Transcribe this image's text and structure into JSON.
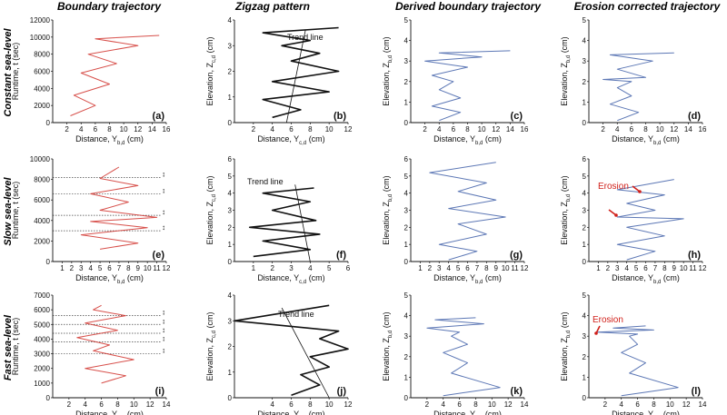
{
  "colors": {
    "red": "#d0302a",
    "blue": "#3f5fa8",
    "black": "#111111",
    "annot": "#d0201a"
  },
  "column_titles": [
    "Boundary trajectory",
    "Zigzag pattern",
    "Derived boundary trajectory",
    "Erosion corrected trajectory"
  ],
  "row_titles": [
    "Constant sea-level",
    "Slow sea-level",
    "Fast sea-level"
  ],
  "chart_data": [
    {
      "id": "a",
      "type": "line",
      "row": 0,
      "col": 0,
      "color": "red",
      "panel_label": "(a)",
      "xlabel": "Distance, Y_{b,d} (cm)",
      "ylabel1": "Runtime, t (sec)",
      "ylabel2": "",
      "xlim": [
        0,
        16
      ],
      "ylim": [
        0,
        12000
      ],
      "xticks": [
        2,
        4,
        6,
        8,
        10,
        12,
        14,
        16
      ],
      "yticks": [
        0,
        2000,
        4000,
        6000,
        8000,
        10000,
        12000
      ],
      "series": [
        {
          "name": "boundary",
          "x": [
            2.5,
            6,
            3,
            8,
            4,
            9,
            5,
            12,
            6,
            15
          ],
          "y": [
            800,
            2000,
            3200,
            4500,
            5800,
            6900,
            8000,
            9000,
            9800,
            10200
          ]
        }
      ]
    },
    {
      "id": "b",
      "type": "line",
      "row": 0,
      "col": 1,
      "color": "black",
      "panel_label": "(b)",
      "xlabel": "Distance, Y_{c,d} (cm)",
      "ylabel1": "Elevation, Z_{c,d} (cm)",
      "ylabel2": "",
      "xlim": [
        0,
        12
      ],
      "ylim": [
        0,
        4
      ],
      "xticks": [
        2,
        4,
        6,
        8,
        10,
        12
      ],
      "yticks": [
        0,
        1,
        2,
        3,
        4
      ],
      "series": [
        {
          "name": "zigzag",
          "x": [
            4,
            7,
            3,
            10,
            4,
            11,
            6,
            9,
            5,
            8,
            3,
            11
          ],
          "y": [
            0.2,
            0.5,
            0.9,
            1.2,
            1.6,
            2.0,
            2.4,
            2.7,
            3.0,
            3.2,
            3.5,
            3.7
          ]
        },
        {
          "name": "trend",
          "x": [
            5.5,
            7.5
          ],
          "y": [
            0,
            3.6
          ]
        }
      ],
      "annotation": "Trend line"
    },
    {
      "id": "c",
      "type": "line",
      "row": 0,
      "col": 2,
      "color": "blue",
      "panel_label": "(c)",
      "xlabel": "Distance, Y_{b,d} (cm)",
      "ylabel1": "Elevation, Z_{b,d} (cm)",
      "ylabel2": "",
      "xlim": [
        0,
        16
      ],
      "ylim": [
        0,
        5
      ],
      "xticks": [
        2,
        4,
        6,
        8,
        10,
        12,
        14,
        16
      ],
      "yticks": [
        0,
        1,
        2,
        3,
        4,
        5
      ],
      "series": [
        {
          "name": "derived",
          "x": [
            4,
            7,
            3,
            7,
            4,
            6,
            3,
            8,
            2,
            10,
            4,
            14
          ],
          "y": [
            0.1,
            0.5,
            0.8,
            1.2,
            1.6,
            2.0,
            2.3,
            2.7,
            3.0,
            3.2,
            3.4,
            3.5
          ]
        }
      ]
    },
    {
      "id": "d",
      "type": "line",
      "row": 0,
      "col": 3,
      "color": "blue",
      "panel_label": "(d)",
      "xlabel": "Distance, Y_{b,d} (cm)",
      "ylabel1": "Elevation, Z_{b,d} (cm)",
      "ylabel2": "",
      "xlim": [
        0,
        16
      ],
      "ylim": [
        0,
        5
      ],
      "xticks": [
        2,
        4,
        6,
        8,
        10,
        12,
        14,
        16
      ],
      "yticks": [
        0,
        1,
        2,
        3,
        4,
        5
      ],
      "series": [
        {
          "name": "corrected",
          "x": [
            4,
            7,
            3,
            6,
            4,
            6,
            2,
            8,
            4,
            9,
            3,
            12
          ],
          "y": [
            0.1,
            0.5,
            0.9,
            1.3,
            1.7,
            2.0,
            2.1,
            2.2,
            2.6,
            3.0,
            3.3,
            3.4
          ]
        }
      ]
    },
    {
      "id": "e",
      "type": "line",
      "row": 1,
      "col": 0,
      "color": "red",
      "panel_label": "(e)",
      "xlabel": "Distance, Y_{b,d} (cm)",
      "ylabel1": "Runtime, t (sec)",
      "ylabel2": "",
      "xlim": [
        0,
        12
      ],
      "ylim": [
        0,
        10000
      ],
      "xticks": [
        1,
        2,
        3,
        4,
        5,
        6,
        7,
        8,
        9,
        10,
        11,
        12
      ],
      "yticks": [
        0,
        2000,
        4000,
        6000,
        8000,
        10000
      ],
      "series": [
        {
          "name": "boundary",
          "x": [
            5,
            9,
            3,
            10,
            4,
            11,
            5,
            8,
            4,
            9,
            5,
            7
          ],
          "y": [
            1200,
            1800,
            2600,
            3300,
            3900,
            4300,
            5000,
            5800,
            6600,
            7400,
            8100,
            9200
          ]
        }
      ],
      "hlines": [
        3000,
        4500,
        6600,
        8200
      ]
    },
    {
      "id": "f",
      "type": "line",
      "row": 1,
      "col": 1,
      "color": "black",
      "panel_label": "(f)",
      "xlabel": "Distance, Y_{c,d} (cm)",
      "ylabel1": "Elevation, Z_{c,d} (cm)",
      "ylabel2": "",
      "xlim": [
        0,
        6
      ],
      "ylim": [
        0,
        6
      ],
      "xticks": [
        1,
        2,
        3,
        4,
        5,
        6
      ],
      "yticks": [
        0,
        1,
        2,
        3,
        4,
        5,
        6
      ],
      "series": [
        {
          "name": "zigzag",
          "x": [
            1,
            4,
            1.5,
            4.5,
            0.8,
            4.3,
            2,
            4,
            1.5,
            4.2
          ],
          "y": [
            0.3,
            0.7,
            1.2,
            1.6,
            2.0,
            2.4,
            3.0,
            3.5,
            4.0,
            4.3
          ]
        },
        {
          "name": "trend",
          "x": [
            4,
            3.2
          ],
          "y": [
            0,
            4.5
          ]
        }
      ],
      "annotation": "Trend line"
    },
    {
      "id": "g",
      "type": "line",
      "row": 1,
      "col": 2,
      "color": "blue",
      "panel_label": "(g)",
      "xlabel": "Distance, Y_{b,d} (cm)",
      "ylabel1": "Elevation, Z_{b,d} (cm)",
      "ylabel2": "",
      "xlim": [
        0,
        12
      ],
      "ylim": [
        0,
        6
      ],
      "xticks": [
        1,
        2,
        3,
        4,
        5,
        6,
        7,
        8,
        9,
        10,
        11,
        12
      ],
      "yticks": [
        0,
        1,
        2,
        3,
        4,
        5,
        6
      ],
      "series": [
        {
          "name": "derived",
          "x": [
            4,
            7,
            3,
            8,
            5,
            10,
            4,
            9,
            5,
            8,
            2,
            9
          ],
          "y": [
            0.1,
            0.6,
            1.0,
            1.6,
            2.2,
            2.6,
            3.1,
            3.6,
            4.1,
            4.6,
            5.2,
            5.8
          ]
        }
      ]
    },
    {
      "id": "h",
      "type": "line",
      "row": 1,
      "col": 3,
      "color": "blue",
      "panel_label": "(h)",
      "xlabel": "Distance, Y_{b,d} (cm)",
      "ylabel1": "Elevation, Z_{b,d} (cm)",
      "ylabel2": "",
      "xlim": [
        0,
        12
      ],
      "ylim": [
        0,
        6
      ],
      "xticks": [
        1,
        2,
        3,
        4,
        5,
        6,
        7,
        8,
        9,
        10,
        11,
        12
      ],
      "yticks": [
        0,
        1,
        2,
        3,
        4,
        5,
        6
      ],
      "series": [
        {
          "name": "corrected",
          "x": [
            4,
            7,
            3,
            8,
            4,
            10,
            3,
            7,
            4,
            8,
            3,
            9
          ],
          "y": [
            0.1,
            0.6,
            1.0,
            1.5,
            2.0,
            2.5,
            2.6,
            3.0,
            3.4,
            3.9,
            4.2,
            4.8
          ]
        }
      ],
      "annotation": "Erosion"
    },
    {
      "id": "i",
      "type": "line",
      "row": 2,
      "col": 0,
      "color": "red",
      "panel_label": "(i)",
      "xlabel": "Distance, Y_{b,d} (cm)",
      "ylabel1": "Runtime, t (sec)",
      "ylabel2": "",
      "xlim": [
        0,
        14
      ],
      "ylim": [
        0,
        7000
      ],
      "xticks": [
        2,
        4,
        6,
        8,
        10,
        12,
        14
      ],
      "yticks": [
        0,
        1000,
        2000,
        3000,
        4000,
        5000,
        6000,
        7000
      ],
      "series": [
        {
          "name": "boundary",
          "x": [
            6,
            9,
            4,
            10,
            5,
            7,
            3,
            8,
            4,
            9,
            5,
            6
          ],
          "y": [
            1000,
            1500,
            2000,
            2600,
            3200,
            3600,
            4100,
            4600,
            5100,
            5600,
            6000,
            6300
          ]
        }
      ],
      "hlines": [
        3000,
        3800,
        4400,
        5000,
        5600
      ]
    },
    {
      "id": "j",
      "type": "line",
      "row": 2,
      "col": 1,
      "color": "black",
      "panel_label": "(j)",
      "xlabel": "Distance, Y_{c,d} (cm)",
      "ylabel1": "Elevation, Z_{c,d} (cm)",
      "ylabel2": "",
      "xlim": [
        0,
        12
      ],
      "ylim": [
        0,
        4
      ],
      "xticks": [
        4,
        6,
        8,
        10,
        12
      ],
      "yticks": [
        0,
        1,
        2,
        3,
        4
      ],
      "series": [
        {
          "name": "zigzag",
          "x": [
            6,
            9,
            7,
            10,
            8,
            12,
            9,
            11,
            0,
            10
          ],
          "y": [
            0.1,
            0.5,
            0.9,
            1.2,
            1.6,
            1.9,
            2.3,
            2.6,
            3.0,
            3.6
          ]
        },
        {
          "name": "trend",
          "x": [
            5,
            10
          ],
          "y": [
            3.5,
            0
          ]
        }
      ],
      "annotation": "Trend line"
    },
    {
      "id": "k",
      "type": "line",
      "row": 2,
      "col": 2,
      "color": "blue",
      "panel_label": "(k)",
      "xlabel": "Distance, Y_{b,d} (cm)",
      "ylabel1": "Elevation, Z_{b,d} (cm)",
      "ylabel2": "",
      "xlim": [
        0,
        14
      ],
      "ylim": [
        0,
        5
      ],
      "xticks": [
        2,
        4,
        6,
        8,
        10,
        12,
        14
      ],
      "yticks": [
        0,
        1,
        2,
        3,
        4,
        5
      ],
      "series": [
        {
          "name": "derived",
          "x": [
            4,
            11,
            5,
            7,
            4,
            7,
            5,
            6,
            2,
            9,
            3,
            8
          ],
          "y": [
            0.1,
            0.5,
            1.2,
            1.7,
            2.2,
            2.6,
            3.0,
            3.2,
            3.4,
            3.6,
            3.8,
            3.9
          ]
        }
      ]
    },
    {
      "id": "l",
      "type": "line",
      "row": 2,
      "col": 3,
      "color": "blue",
      "panel_label": "(l)",
      "xlabel": "Distance, Y_{b,d} (cm)",
      "ylabel1": "Elevation, Z_{b,d} (cm)",
      "ylabel2": "",
      "xlim": [
        0,
        14
      ],
      "ylim": [
        0,
        5
      ],
      "xticks": [
        2,
        4,
        6,
        8,
        10,
        12,
        14
      ],
      "yticks": [
        0,
        1,
        2,
        3,
        4,
        5
      ],
      "series": [
        {
          "name": "corrected",
          "x": [
            4,
            11,
            5,
            7,
            4,
            6,
            5,
            6,
            1,
            8,
            3,
            7
          ],
          "y": [
            0.1,
            0.5,
            1.2,
            1.7,
            2.2,
            2.6,
            3.0,
            3.1,
            3.2,
            3.3,
            3.4,
            3.5
          ]
        }
      ],
      "annotation": "Erosion"
    }
  ]
}
